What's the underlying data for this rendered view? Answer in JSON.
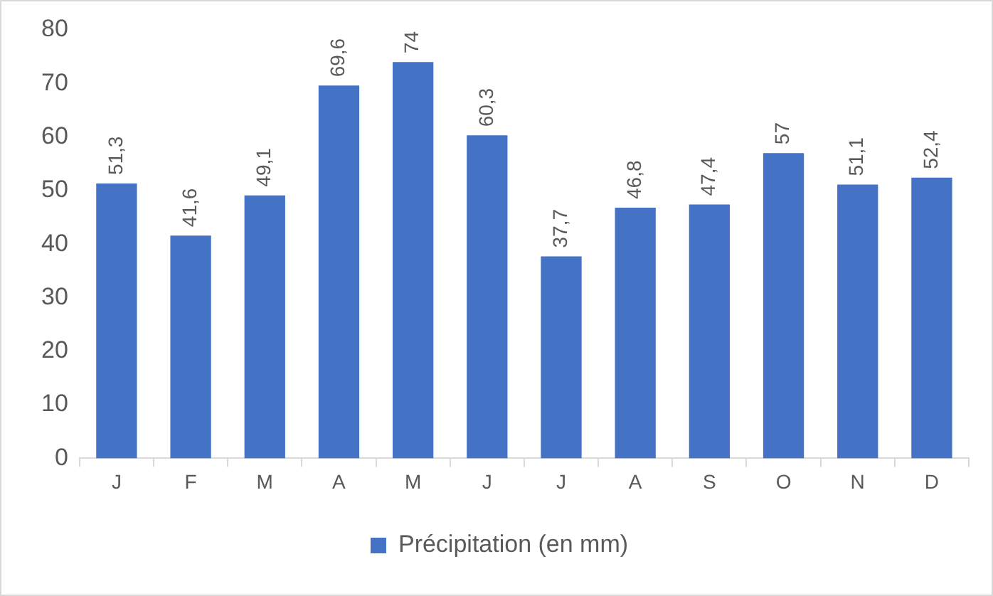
{
  "chart_data": {
    "type": "bar",
    "categories": [
      "J",
      "F",
      "M",
      "A",
      "M",
      "J",
      "J",
      "A",
      "S",
      "O",
      "N",
      "D"
    ],
    "series": [
      {
        "name": "Précipitation (en mm)",
        "color": "#4472c4",
        "values": [
          51.3,
          41.6,
          49.1,
          69.6,
          74,
          60.3,
          37.7,
          46.8,
          47.4,
          57,
          51.1,
          52.4
        ],
        "value_labels": [
          "51,3",
          "41,6",
          "49,1",
          "69,6",
          "74",
          "60,3",
          "37,7",
          "46,8",
          "47,4",
          "57",
          "51,1",
          "52,4"
        ]
      }
    ],
    "ylim": [
      0,
      80
    ],
    "yticks": [
      0,
      10,
      20,
      30,
      40,
      50,
      60,
      70,
      80
    ],
    "grid": false,
    "legend": "bottom"
  }
}
